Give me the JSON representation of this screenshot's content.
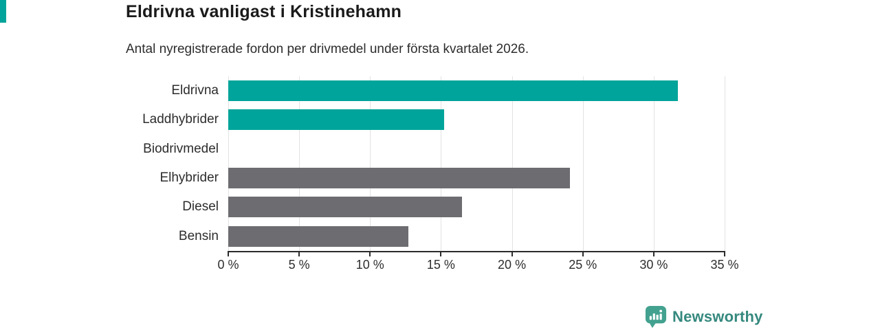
{
  "header": {
    "title": "Eldrivna vanligast i Kristinehamn",
    "subtitle": "Antal nyregistrerade fordon per drivmedel under första kvartalet 2026."
  },
  "chart_data": {
    "type": "bar",
    "orientation": "horizontal",
    "title": "Eldrivna vanligast i Kristinehamn",
    "subtitle": "Antal nyregistrerade fordon per drivmedel under första kvartalet 2026.",
    "categories": [
      "Eldrivna",
      "Laddhybrider",
      "Biodrivmedel",
      "Elhybrider",
      "Diesel",
      "Bensin"
    ],
    "values": [
      31.7,
      15.2,
      0,
      24.1,
      16.5,
      12.7
    ],
    "unit": "%",
    "xlim": [
      0,
      35
    ],
    "x_ticks": [
      0,
      5,
      10,
      15,
      20,
      25,
      30,
      35
    ],
    "x_tick_labels": [
      "0 %",
      "5 %",
      "10 %",
      "15 %",
      "20 %",
      "25 %",
      "30 %",
      "35 %"
    ],
    "grid": "vertical-gridlines-on",
    "legend": "none",
    "bar_colors": [
      "#00a49a",
      "#00a49a",
      "#6c6c71",
      "#6c6c71",
      "#6c6c71",
      "#6c6c71"
    ]
  },
  "branding": {
    "logo_text": "Newsworthy",
    "logo_icon": "newsworthy-speech-bubble-bar-chart-icon"
  },
  "colors": {
    "accent_teal": "#00a49a",
    "bar_gray": "#6c6c71",
    "gridline": "#e2e2e2",
    "axis": "#2b2b2b",
    "title_text": "#1a1a1a",
    "body_text": "#2d2d2d",
    "logo_text": "#35897e",
    "logo_icon": "#43a18f"
  }
}
